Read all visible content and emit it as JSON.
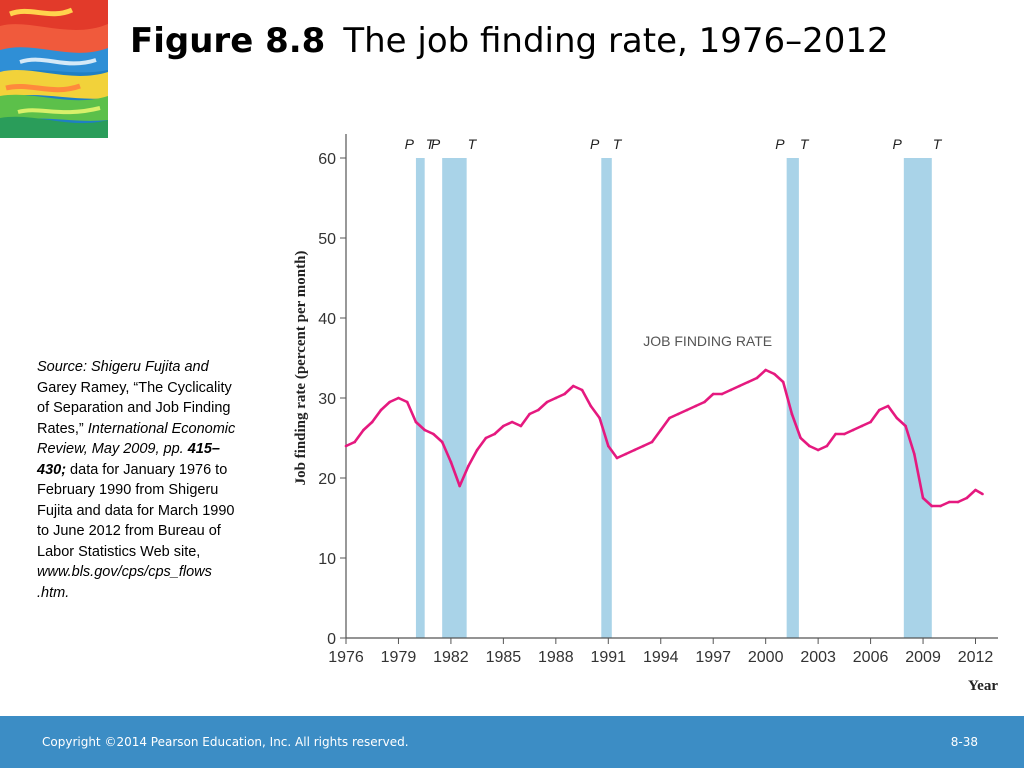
{
  "slide": {
    "figure_label": "Figure 8.8",
    "figure_title": "The job finding rate, 1976–2012",
    "source_parts": [
      {
        "text": "Source: Shigeru Fujita and",
        "style": "it"
      },
      {
        "text": " Garey Ramey, “The Cyclicality of Separation and Job Finding Rates,” ",
        "style": "n"
      },
      {
        "text": "International Economic Review, May 2009, pp. ",
        "style": "it"
      },
      {
        "text": "415–430;",
        "style": "bi"
      },
      {
        "text": " data for January 1976 to February 1990 from Shigeru Fujita and data for March 1990 to June 2012 from Bureau of Labor Statistics Web site, ",
        "style": "n"
      },
      {
        "text": "www.bls.gov/cps/cps_flows .htm.",
        "style": "it"
      }
    ],
    "footer_copyright": "Copyright ©2014 Pearson Education, Inc. All rights reserved.",
    "page_number": "8-38",
    "colors": {
      "footer_bar": "#3c8dc5",
      "series_line": "#e5197f",
      "recession_band": "#a9d3e8"
    }
  },
  "chart_data": {
    "type": "line",
    "title": "",
    "xlabel": "Year",
    "ylabel": "Job finding rate (percent per month)",
    "xlim": [
      1976,
      2012.6
    ],
    "ylim": [
      0,
      60
    ],
    "x_ticks": [
      1976,
      1979,
      1982,
      1985,
      1988,
      1991,
      1994,
      1997,
      2000,
      2003,
      2006,
      2009,
      2012
    ],
    "y_ticks": [
      0,
      10,
      20,
      30,
      40,
      50,
      60
    ],
    "grid": false,
    "annotation": "JOB FINDING RATE",
    "recessions": [
      {
        "start": 1980.0,
        "end": 1980.5,
        "peak_label": "P",
        "trough_label": "T"
      },
      {
        "start": 1981.5,
        "end": 1982.9,
        "peak_label": "P",
        "trough_label": "T"
      },
      {
        "start": 1990.6,
        "end": 1991.2,
        "peak_label": "P",
        "trough_label": "T"
      },
      {
        "start": 2001.2,
        "end": 2001.9,
        "peak_label": "P",
        "trough_label": "T"
      },
      {
        "start": 2007.9,
        "end": 2009.5,
        "peak_label": "P",
        "trough_label": "T"
      }
    ],
    "series": [
      {
        "name": "JOB FINDING RATE",
        "x": [
          1976.0,
          1976.5,
          1977.0,
          1977.5,
          1978.0,
          1978.5,
          1979.0,
          1979.5,
          1980.0,
          1980.5,
          1981.0,
          1981.5,
          1982.0,
          1982.5,
          1983.0,
          1983.5,
          1984.0,
          1984.5,
          1985.0,
          1985.5,
          1986.0,
          1986.5,
          1987.0,
          1987.5,
          1988.0,
          1988.5,
          1989.0,
          1989.5,
          1990.0,
          1990.5,
          1991.0,
          1991.5,
          1992.0,
          1992.5,
          1993.0,
          1993.5,
          1994.0,
          1994.5,
          1995.0,
          1995.5,
          1996.0,
          1996.5,
          1997.0,
          1997.5,
          1998.0,
          1998.5,
          1999.0,
          1999.5,
          2000.0,
          2000.5,
          2001.0,
          2001.5,
          2002.0,
          2002.5,
          2003.0,
          2003.5,
          2004.0,
          2004.5,
          2005.0,
          2005.5,
          2006.0,
          2006.5,
          2007.0,
          2007.5,
          2008.0,
          2008.5,
          2009.0,
          2009.5,
          2010.0,
          2010.5,
          2011.0,
          2011.5,
          2012.0,
          2012.4
        ],
        "y": [
          24.0,
          24.5,
          26.0,
          27.0,
          28.5,
          29.5,
          30.0,
          29.5,
          27.0,
          26.0,
          25.5,
          24.5,
          22.0,
          19.0,
          21.5,
          23.5,
          25.0,
          25.5,
          26.5,
          27.0,
          26.5,
          28.0,
          28.5,
          29.5,
          30.0,
          30.5,
          31.5,
          31.0,
          29.0,
          27.5,
          24.0,
          22.5,
          23.0,
          23.5,
          24.0,
          24.5,
          26.0,
          27.5,
          28.0,
          28.5,
          29.0,
          29.5,
          30.5,
          30.5,
          31.0,
          31.5,
          32.0,
          32.5,
          33.5,
          33.0,
          32.0,
          28.0,
          25.0,
          24.0,
          23.5,
          24.0,
          25.5,
          25.5,
          26.0,
          26.5,
          27.0,
          28.5,
          29.0,
          27.5,
          26.5,
          23.0,
          17.5,
          16.5,
          16.5,
          17.0,
          17.0,
          17.5,
          18.5,
          18.0
        ]
      }
    ]
  }
}
